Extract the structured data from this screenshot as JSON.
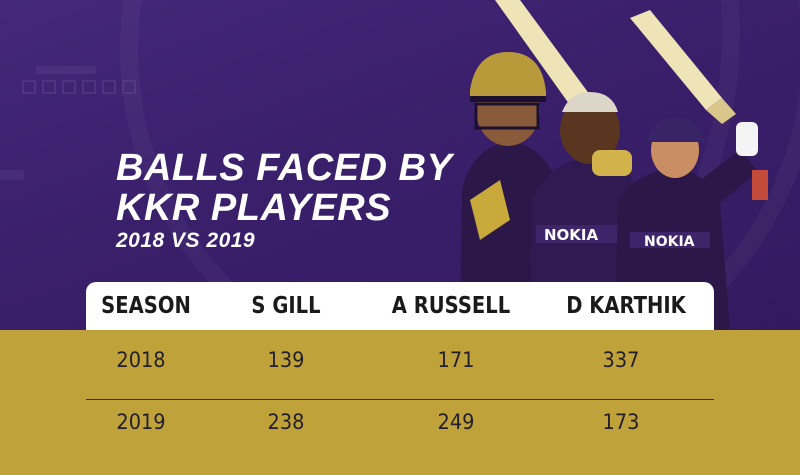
{
  "title_line1": "BALLS FACED BY",
  "title_line2": "KKR PLAYERS",
  "subtitle": "2018 VS 2019",
  "colors": {
    "background_top": "#3a1f6b",
    "background_bottom": "#bfa33a",
    "header_bg": "#ffffff",
    "text_light": "#ffffff",
    "text_dark": "#1a1a1a"
  },
  "chart_data": {
    "type": "table",
    "title": "BALLS FACED BY KKR PLAYERS",
    "subtitle": "2018 VS 2019",
    "columns": [
      "SEASON",
      "S GILL",
      "A RUSSELL",
      "D KARTHIK"
    ],
    "rows": [
      [
        "2018",
        "139",
        "171",
        "337"
      ],
      [
        "2019",
        "238",
        "249",
        "173"
      ]
    ]
  }
}
